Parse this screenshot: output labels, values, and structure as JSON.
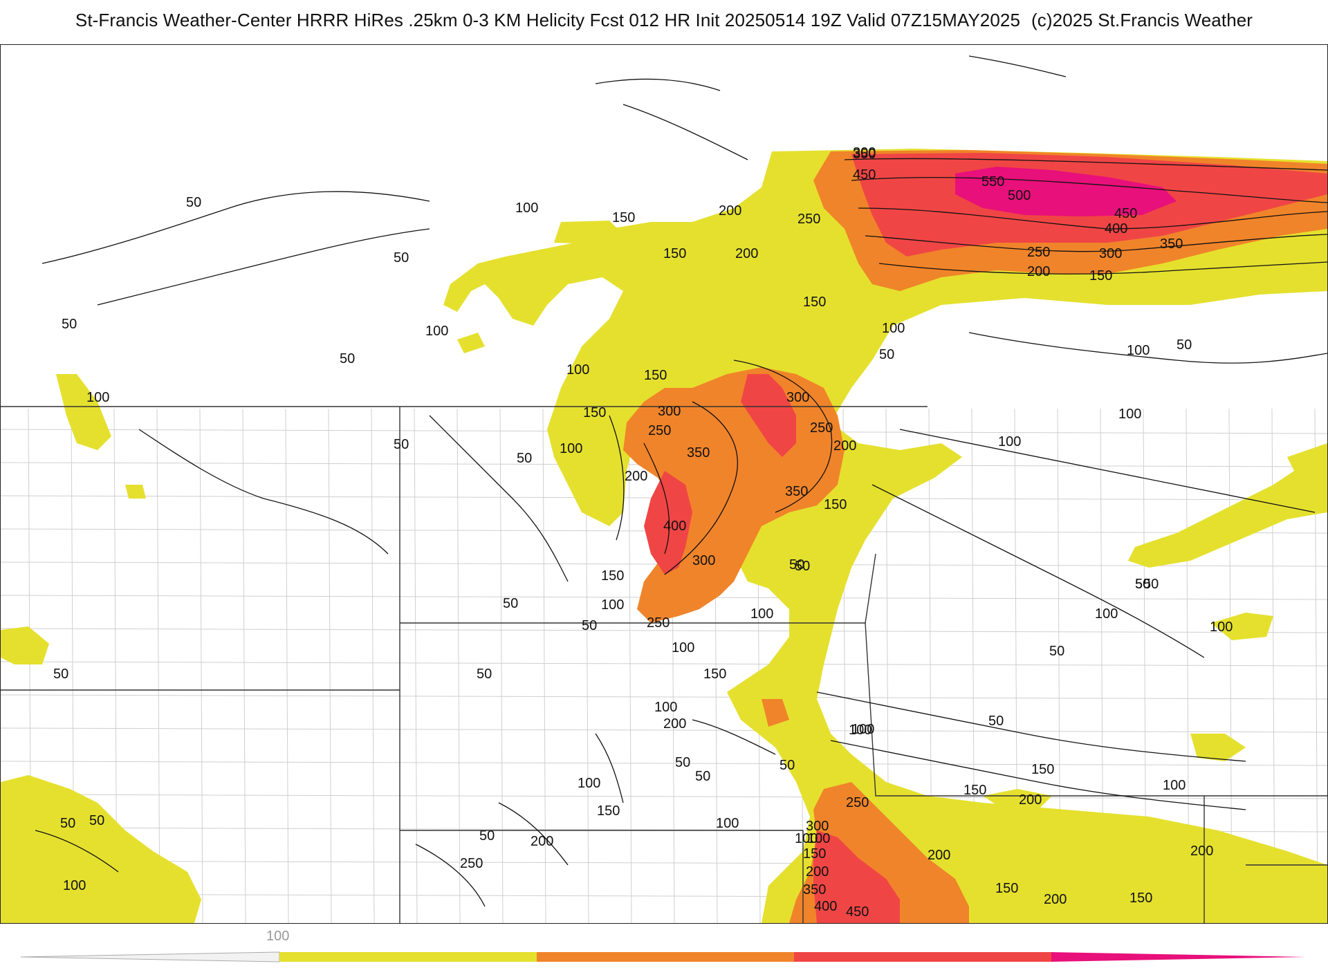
{
  "header": {
    "title_left": "St-Francis Weather-Center HRRR HiRes .25km 0-3 KM Helicity Fcst 012 HR Init 20250514 19Z  Valid 07Z15MAY2025",
    "copyright": "(c)2025 St.Francis Weather"
  },
  "colors": {
    "band_100": "#e5e02e",
    "band_200": "#f0842a",
    "band_300": "#f04545",
    "band_400": "#e8107a",
    "contour": "#111111",
    "state_border": "#333333",
    "county_border": "#cccccc"
  },
  "colorbar": {
    "tick_label": "100",
    "levels": [
      100,
      200,
      300,
      400,
      500
    ]
  },
  "contour_labels": [
    {
      "text": "50"
    },
    {
      "text": "100"
    },
    {
      "text": "150"
    },
    {
      "text": "200"
    },
    {
      "text": "250"
    },
    {
      "text": "300"
    },
    {
      "text": "350"
    },
    {
      "text": "400"
    },
    {
      "text": "450"
    },
    {
      "text": "500"
    },
    {
      "text": "550"
    }
  ]
}
